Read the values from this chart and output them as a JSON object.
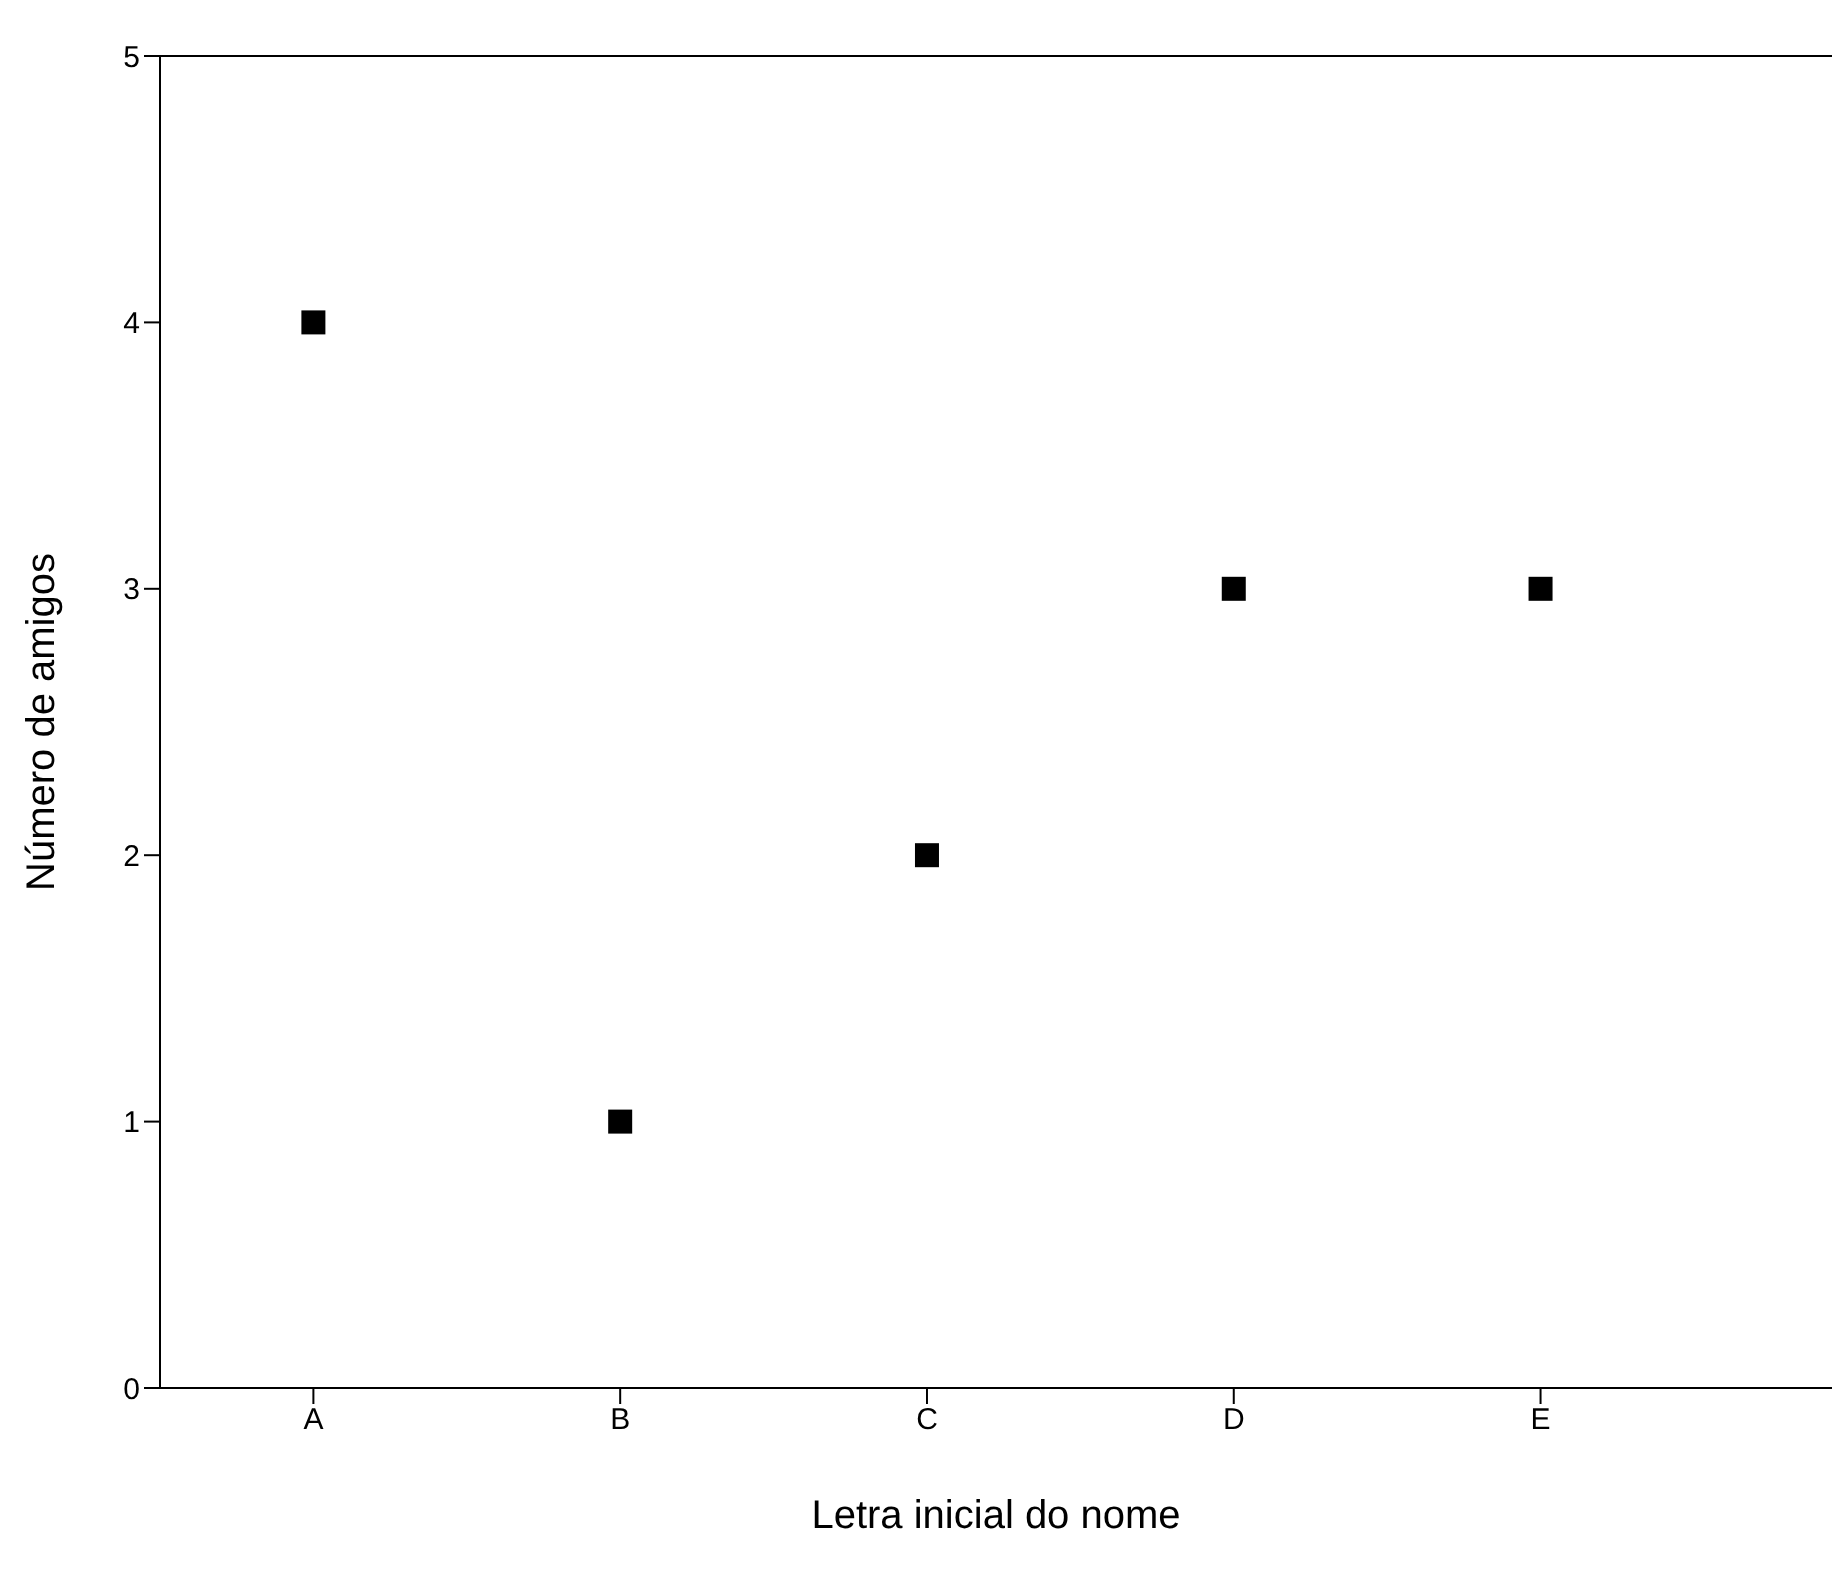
{
  "chart_data": {
    "type": "scatter",
    "xlabel": "Letra inicial do nome",
    "ylabel": "Número de amigos",
    "categories": [
      "A",
      "B",
      "C",
      "D",
      "E"
    ],
    "series": [
      {
        "color": "#000000",
        "values": [
          4,
          1,
          2,
          3,
          3
        ]
      }
    ],
    "ylim": [
      0,
      5
    ],
    "yticks": [
      0,
      1,
      2,
      3,
      4,
      5
    ],
    "marker": "square",
    "grid": false,
    "legend": false
  }
}
